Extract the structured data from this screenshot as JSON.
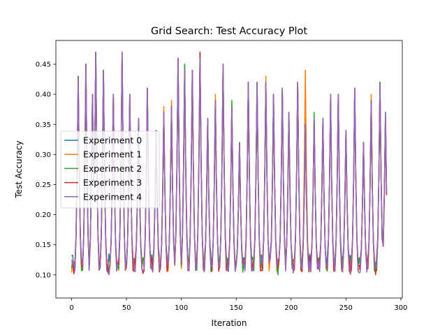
{
  "chart_data": {
    "type": "line",
    "title": "Grid Search: Test Accuracy Plot",
    "xlabel": "Iteration",
    "ylabel": "Test Accuracy",
    "xlim": [
      -14.35,
      301.35
    ],
    "ylim": [
      0.0615,
      0.4895
    ],
    "xticks": [
      0,
      50,
      100,
      150,
      200,
      250,
      300
    ],
    "xtick_labels": [
      "0",
      "50",
      "100",
      "150",
      "200",
      "250",
      "300"
    ],
    "yticks": [
      0.1,
      0.15,
      0.2,
      0.25,
      0.3,
      0.35,
      0.4,
      0.45
    ],
    "ytick_labels": [
      "0.10",
      "0.15",
      "0.20",
      "0.25",
      "0.30",
      "0.35",
      "0.40",
      "0.45"
    ],
    "grid": false,
    "legend_position": "center-left",
    "n_points_per_series": 288,
    "series": [
      {
        "name": "Experiment 0",
        "color": "#1f77b4",
        "peaks": [
          [
            6,
            0.43
          ],
          [
            13,
            0.45
          ],
          [
            19,
            0.4
          ],
          [
            22,
            0.47
          ],
          [
            29,
            0.44
          ],
          [
            38,
            0.4
          ],
          [
            46,
            0.47
          ],
          [
            53,
            0.4
          ],
          [
            61,
            0.36
          ],
          [
            69,
            0.41
          ],
          [
            77,
            0.34
          ],
          [
            84,
            0.37
          ],
          [
            91,
            0.38
          ],
          [
            97,
            0.46
          ],
          [
            103,
            0.45
          ],
          [
            110,
            0.44
          ],
          [
            117,
            0.47
          ],
          [
            124,
            0.36
          ],
          [
            131,
            0.39
          ],
          [
            138,
            0.45
          ],
          [
            146,
            0.38
          ],
          [
            153,
            0.32
          ],
          [
            161,
            0.42
          ],
          [
            169,
            0.42
          ],
          [
            177,
            0.42
          ],
          [
            184,
            0.4
          ],
          [
            192,
            0.41
          ],
          [
            198,
            0.37
          ],
          [
            206,
            0.42
          ],
          [
            213,
            0.35
          ],
          [
            221,
            0.36
          ],
          [
            229,
            0.36
          ],
          [
            236,
            0.39
          ],
          [
            243,
            0.4
          ],
          [
            250,
            0.34
          ],
          [
            258,
            0.41
          ],
          [
            266,
            0.32
          ],
          [
            273,
            0.39
          ],
          [
            281,
            0.42
          ],
          [
            286,
            0.37
          ]
        ],
        "base": 0.105
      },
      {
        "name": "Experiment 1",
        "color": "#ff7f0e",
        "peaks": [
          [
            6,
            0.43
          ],
          [
            13,
            0.45
          ],
          [
            19,
            0.4
          ],
          [
            22,
            0.47
          ],
          [
            29,
            0.44
          ],
          [
            38,
            0.4
          ],
          [
            46,
            0.47
          ],
          [
            53,
            0.4
          ],
          [
            61,
            0.36
          ],
          [
            69,
            0.41
          ],
          [
            77,
            0.33
          ],
          [
            84,
            0.38
          ],
          [
            91,
            0.39
          ],
          [
            97,
            0.46
          ],
          [
            103,
            0.44
          ],
          [
            110,
            0.44
          ],
          [
            117,
            0.46
          ],
          [
            124,
            0.36
          ],
          [
            131,
            0.4
          ],
          [
            138,
            0.45
          ],
          [
            146,
            0.38
          ],
          [
            153,
            0.32
          ],
          [
            161,
            0.42
          ],
          [
            169,
            0.42
          ],
          [
            177,
            0.43
          ],
          [
            184,
            0.4
          ],
          [
            192,
            0.41
          ],
          [
            198,
            0.36
          ],
          [
            206,
            0.42
          ],
          [
            213,
            0.44
          ],
          [
            221,
            0.36
          ],
          [
            229,
            0.36
          ],
          [
            236,
            0.4
          ],
          [
            243,
            0.4
          ],
          [
            250,
            0.33
          ],
          [
            258,
            0.41
          ],
          [
            266,
            0.32
          ],
          [
            273,
            0.4
          ],
          [
            281,
            0.42
          ],
          [
            286,
            0.36
          ]
        ],
        "base": 0.1
      },
      {
        "name": "Experiment 2",
        "color": "#2ca02c",
        "peaks": [
          [
            6,
            0.43
          ],
          [
            13,
            0.45
          ],
          [
            19,
            0.4
          ],
          [
            22,
            0.47
          ],
          [
            29,
            0.44
          ],
          [
            38,
            0.4
          ],
          [
            46,
            0.47
          ],
          [
            53,
            0.4
          ],
          [
            61,
            0.36
          ],
          [
            69,
            0.41
          ],
          [
            77,
            0.34
          ],
          [
            84,
            0.37
          ],
          [
            91,
            0.38
          ],
          [
            97,
            0.46
          ],
          [
            103,
            0.45
          ],
          [
            110,
            0.44
          ],
          [
            117,
            0.47
          ],
          [
            124,
            0.36
          ],
          [
            131,
            0.39
          ],
          [
            138,
            0.45
          ],
          [
            146,
            0.39
          ],
          [
            153,
            0.32
          ],
          [
            161,
            0.42
          ],
          [
            169,
            0.42
          ],
          [
            177,
            0.42
          ],
          [
            184,
            0.4
          ],
          [
            192,
            0.41
          ],
          [
            198,
            0.37
          ],
          [
            206,
            0.42
          ],
          [
            213,
            0.35
          ],
          [
            221,
            0.37
          ],
          [
            229,
            0.36
          ],
          [
            236,
            0.4
          ],
          [
            243,
            0.4
          ],
          [
            250,
            0.34
          ],
          [
            258,
            0.41
          ],
          [
            266,
            0.32
          ],
          [
            273,
            0.39
          ],
          [
            281,
            0.42
          ],
          [
            286,
            0.37
          ]
        ],
        "base": 0.1
      },
      {
        "name": "Experiment 3",
        "color": "#d62728",
        "peaks": [
          [
            6,
            0.43
          ],
          [
            13,
            0.45
          ],
          [
            19,
            0.4
          ],
          [
            22,
            0.47
          ],
          [
            29,
            0.44
          ],
          [
            38,
            0.4
          ],
          [
            46,
            0.47
          ],
          [
            53,
            0.4
          ],
          [
            61,
            0.36
          ],
          [
            69,
            0.41
          ],
          [
            77,
            0.34
          ],
          [
            84,
            0.37
          ],
          [
            91,
            0.38
          ],
          [
            97,
            0.46
          ],
          [
            103,
            0.44
          ],
          [
            110,
            0.44
          ],
          [
            117,
            0.47
          ],
          [
            124,
            0.36
          ],
          [
            131,
            0.39
          ],
          [
            138,
            0.45
          ],
          [
            146,
            0.38
          ],
          [
            153,
            0.32
          ],
          [
            161,
            0.42
          ],
          [
            169,
            0.42
          ],
          [
            177,
            0.42
          ],
          [
            184,
            0.4
          ],
          [
            192,
            0.41
          ],
          [
            198,
            0.37
          ],
          [
            206,
            0.42
          ],
          [
            213,
            0.35
          ],
          [
            221,
            0.36
          ],
          [
            229,
            0.36
          ],
          [
            236,
            0.4
          ],
          [
            243,
            0.4
          ],
          [
            250,
            0.34
          ],
          [
            258,
            0.41
          ],
          [
            266,
            0.32
          ],
          [
            273,
            0.39
          ],
          [
            281,
            0.42
          ],
          [
            286,
            0.36
          ]
        ],
        "base": 0.1
      },
      {
        "name": "Experiment 4",
        "color": "#9467bd",
        "peaks": [
          [
            6,
            0.43
          ],
          [
            13,
            0.45
          ],
          [
            19,
            0.4
          ],
          [
            22,
            0.47
          ],
          [
            29,
            0.44
          ],
          [
            38,
            0.4
          ],
          [
            46,
            0.47
          ],
          [
            53,
            0.4
          ],
          [
            61,
            0.36
          ],
          [
            69,
            0.41
          ],
          [
            77,
            0.34
          ],
          [
            84,
            0.37
          ],
          [
            91,
            0.38
          ],
          [
            97,
            0.46
          ],
          [
            103,
            0.44
          ],
          [
            110,
            0.44
          ],
          [
            117,
            0.46
          ],
          [
            124,
            0.36
          ],
          [
            131,
            0.39
          ],
          [
            138,
            0.45
          ],
          [
            146,
            0.38
          ],
          [
            153,
            0.32
          ],
          [
            161,
            0.42
          ],
          [
            169,
            0.42
          ],
          [
            177,
            0.42
          ],
          [
            184,
            0.4
          ],
          [
            192,
            0.41
          ],
          [
            198,
            0.37
          ],
          [
            206,
            0.42
          ],
          [
            213,
            0.35
          ],
          [
            221,
            0.36
          ],
          [
            229,
            0.36
          ],
          [
            236,
            0.4
          ],
          [
            243,
            0.4
          ],
          [
            250,
            0.34
          ],
          [
            258,
            0.41
          ],
          [
            266,
            0.32
          ],
          [
            273,
            0.39
          ],
          [
            281,
            0.42
          ],
          [
            286,
            0.37
          ]
        ],
        "base": 0.1
      }
    ]
  }
}
